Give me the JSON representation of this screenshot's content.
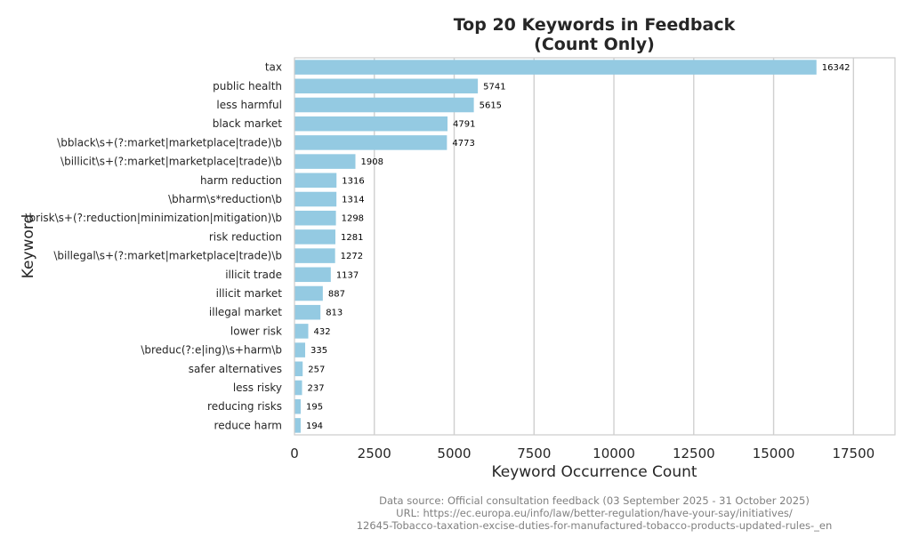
{
  "chart_data": {
    "type": "bar",
    "orientation": "horizontal",
    "title": [
      "Top 20 Keywords in Feedback",
      "(Count Only)"
    ],
    "xlabel": "Keyword Occurrence Count",
    "ylabel": "Keyword",
    "xlim": [
      0,
      18800
    ],
    "xticks": [
      0,
      2500,
      5000,
      7500,
      10000,
      12500,
      15000,
      17500
    ],
    "grid": "x",
    "bar_color": "#94cae2",
    "categories": [
      "tax",
      "public health",
      "less harmful",
      "black market",
      "\\bblack\\s+(?:market|marketplace|trade)\\b",
      "\\billicit\\s+(?:market|marketplace|trade)\\b",
      "harm reduction",
      "\\bharm\\s*reduction\\b",
      "\\brisk\\s+(?:reduction|minimization|mitigation)\\b",
      "risk reduction",
      "\\billegal\\s+(?:market|marketplace|trade)\\b",
      "illicit trade",
      "illicit market",
      "illegal market",
      "lower risk",
      "\\breduc(?:e|ing)\\s+harm\\b",
      "safer alternatives",
      "less risky",
      "reducing risks",
      "reduce harm"
    ],
    "values": [
      16342,
      5741,
      5615,
      4791,
      4773,
      1908,
      1316,
      1314,
      1298,
      1281,
      1272,
      1137,
      887,
      813,
      432,
      335,
      257,
      237,
      195,
      194
    ]
  },
  "footer": {
    "line1": "Data source: Official consultation feedback (03 September 2025 - 31 October 2025)",
    "line2": "URL: https://ec.europa.eu/info/law/better-regulation/have-your-say/initiatives/",
    "line3": "12645-Tobacco-taxation-excise-duties-for-manufactured-tobacco-products-updated-rules-_en"
  }
}
